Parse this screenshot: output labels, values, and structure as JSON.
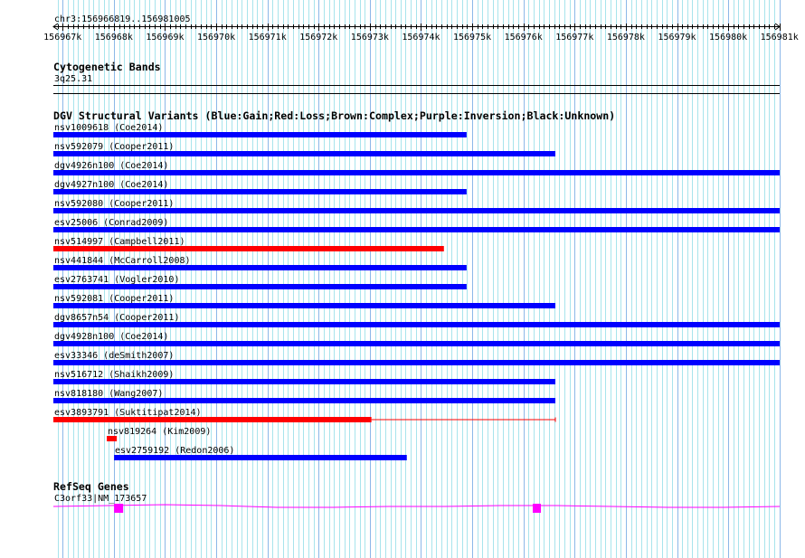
{
  "region": {
    "label": "chr3:156966819..156981005",
    "start": 156966819,
    "end": 156981005
  },
  "ruler": {
    "ticks_k": [
      "156967k",
      "156968k",
      "156969k",
      "156970k",
      "156971k",
      "156972k",
      "156973k",
      "156974k",
      "156975k",
      "156976k",
      "156977k",
      "156978k",
      "156979k",
      "156980k",
      "156981k"
    ]
  },
  "colors": {
    "gain": "#0000ff",
    "loss": "#ff0000",
    "gene": "#ff00ff",
    "grid_minor": "#a8e4ec",
    "grid_major": "#8cb8e8"
  },
  "cyto": {
    "title": "Cytogenetic Bands",
    "band": "3q25.31"
  },
  "dgv": {
    "title": "DGV Structural Variants (Blue:Gain;Red:Loss;Brown:Complex;Purple:Inversion;Black:Unknown)",
    "items": [
      {
        "label": "nsv1009618 (Coe2014)",
        "type": "gain",
        "start": 156966819,
        "end": 156974890
      },
      {
        "label": "nsv592079 (Cooper2011)",
        "type": "gain",
        "start": 156966819,
        "end": 156976624
      },
      {
        "label": "dgv4926n100 (Coe2014)",
        "type": "gain",
        "start": 156966819,
        "end": 156981005
      },
      {
        "label": "dgv4927n100 (Coe2014)",
        "type": "gain",
        "start": 156966819,
        "end": 156974890
      },
      {
        "label": "nsv592080 (Cooper2011)",
        "type": "gain",
        "start": 156966819,
        "end": 156981005
      },
      {
        "label": "esv25006 (Conrad2009)",
        "type": "gain",
        "start": 156966819,
        "end": 156981005
      },
      {
        "label": "nsv514997 (Campbell2011)",
        "type": "loss",
        "start": 156966819,
        "end": 156974447
      },
      {
        "label": "nsv441844 (McCarroll2008)",
        "type": "gain",
        "start": 156966819,
        "end": 156974890
      },
      {
        "label": "esv2763741 (Vogler2010)",
        "type": "gain",
        "start": 156966819,
        "end": 156974890
      },
      {
        "label": "nsv592081 (Cooper2011)",
        "type": "gain",
        "start": 156966819,
        "end": 156976624
      },
      {
        "label": "dgv8657n54 (Cooper2011)",
        "type": "gain",
        "start": 156966819,
        "end": 156981005
      },
      {
        "label": "dgv4928n100 (Coe2014)",
        "type": "gain",
        "start": 156966819,
        "end": 156981005
      },
      {
        "label": "esv33346 (deSmith2007)",
        "type": "gain",
        "start": 156966819,
        "end": 156981005
      },
      {
        "label": "nsv516712 (Shaikh2009)",
        "type": "gain",
        "start": 156966819,
        "end": 156976624
      },
      {
        "label": "nsv818180 (Wang2007)",
        "type": "gain",
        "start": 156966819,
        "end": 156976624
      },
      {
        "label": "esv3893791 (Suktitipat2014)",
        "type": "loss",
        "start": 156966819,
        "end": 156973031,
        "thin_end": 156976624
      },
      {
        "label": "nsv819264 (Kim2009)",
        "type": "loss",
        "start": 156967863,
        "end": 156968058
      },
      {
        "label": "esv2759192 (Redon2006)",
        "type": "gain",
        "start": 156968005,
        "end": 156973722
      }
    ]
  },
  "refseq": {
    "title": "RefSeq Genes",
    "gene": {
      "label": "C3orf33|NM_173657",
      "start": 156966819,
      "end": 156981005,
      "exons": [
        [
          156968005,
          156968182
        ],
        [
          156976182,
          156976341
        ]
      ]
    }
  }
}
